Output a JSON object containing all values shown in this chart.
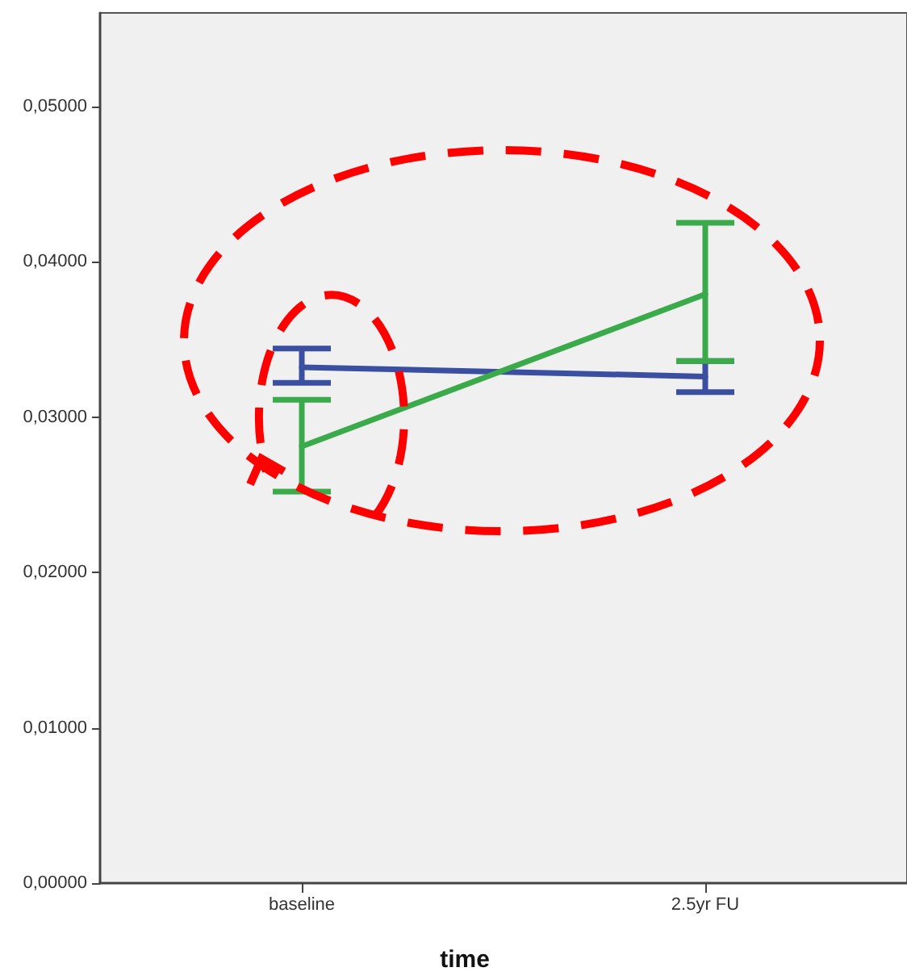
{
  "chart_data": {
    "type": "line",
    "xlabel": "time",
    "categories": [
      "baseline",
      "2.5yr FU"
    ],
    "series": [
      {
        "color": "#3b4fa0",
        "values": [
          0.0332,
          0.0326
        ],
        "errors": [
          [
            0.0322,
            0.0344
          ],
          [
            0.0316,
            0.0336
          ]
        ]
      },
      {
        "color": "#3aaa4a",
        "values": [
          0.0281,
          0.0379
        ],
        "errors": [
          [
            0.0252,
            0.0311
          ],
          [
            0.0336,
            0.0425
          ]
        ]
      }
    ],
    "ylim": [
      0,
      0.056
    ],
    "yticks": [
      {
        "value": 0,
        "label": "0,00000"
      },
      {
        "value": 0.01,
        "label": "0,01000"
      },
      {
        "value": 0.02,
        "label": "0,02000"
      },
      {
        "value": 0.03,
        "label": "0,03000"
      },
      {
        "value": 0.04,
        "label": "0,04000"
      },
      {
        "value": 0.05,
        "label": "0,05000"
      }
    ],
    "grid": false,
    "marker": "none",
    "line_style": "solid"
  }
}
